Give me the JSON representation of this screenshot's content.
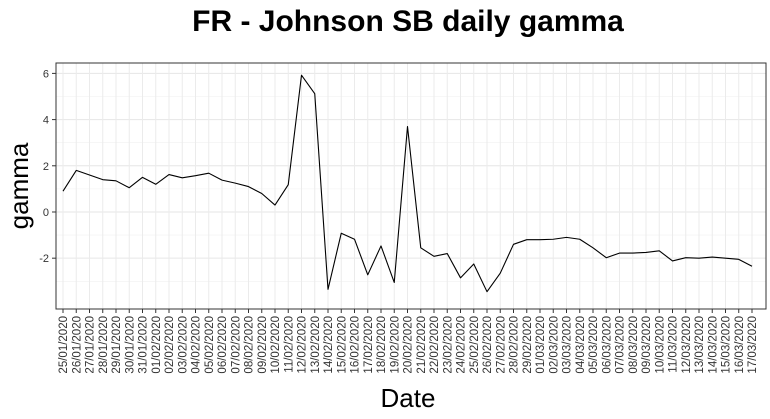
{
  "chart_data": {
    "type": "line",
    "title": "FR - Johnson SB daily gamma",
    "xlabel": "Date",
    "ylabel": "gamma",
    "ylim": [
      -4.2,
      6.45
    ],
    "y_ticks": [
      -2,
      0,
      2,
      4,
      6
    ],
    "grid": true,
    "line_color": "#000000",
    "x": [
      "25/01/2020",
      "26/01/2020",
      "27/01/2020",
      "28/01/2020",
      "29/01/2020",
      "30/01/2020",
      "31/01/2020",
      "01/02/2020",
      "02/02/2020",
      "03/02/2020",
      "04/02/2020",
      "05/02/2020",
      "06/02/2020",
      "07/02/2020",
      "08/02/2020",
      "09/02/2020",
      "10/02/2020",
      "11/02/2020",
      "12/02/2020",
      "13/02/2020",
      "14/02/2020",
      "15/02/2020",
      "16/02/2020",
      "17/02/2020",
      "18/02/2020",
      "19/02/2020",
      "20/02/2020",
      "21/02/2020",
      "22/02/2020",
      "23/02/2020",
      "24/02/2020",
      "25/02/2020",
      "26/02/2020",
      "27/02/2020",
      "28/02/2020",
      "29/02/2020",
      "01/03/2020",
      "02/03/2020",
      "03/03/2020",
      "04/03/2020",
      "05/03/2020",
      "06/03/2020",
      "07/03/2020",
      "08/03/2020",
      "09/03/2020",
      "10/03/2020",
      "11/03/2020",
      "12/03/2020",
      "13/03/2020",
      "14/03/2020",
      "15/03/2020",
      "16/03/2020",
      "17/03/2020"
    ],
    "values": [
      0.9,
      1.8,
      1.6,
      1.4,
      1.35,
      1.05,
      1.5,
      1.2,
      1.62,
      1.48,
      1.57,
      1.68,
      1.38,
      1.25,
      1.1,
      0.8,
      0.3,
      1.18,
      5.92,
      5.12,
      -3.35,
      -0.92,
      -1.18,
      -2.72,
      -1.47,
      -3.05,
      3.7,
      -1.55,
      -1.92,
      -1.8,
      -2.85,
      -2.25,
      -3.45,
      -2.65,
      -1.4,
      -1.2,
      -1.2,
      -1.18,
      -1.1,
      -1.18,
      -1.55,
      -1.98,
      -1.78,
      -1.78,
      -1.75,
      -1.68,
      -2.12,
      -1.98,
      -2.0,
      -1.95,
      -2.0,
      -2.05,
      -2.35
    ]
  }
}
